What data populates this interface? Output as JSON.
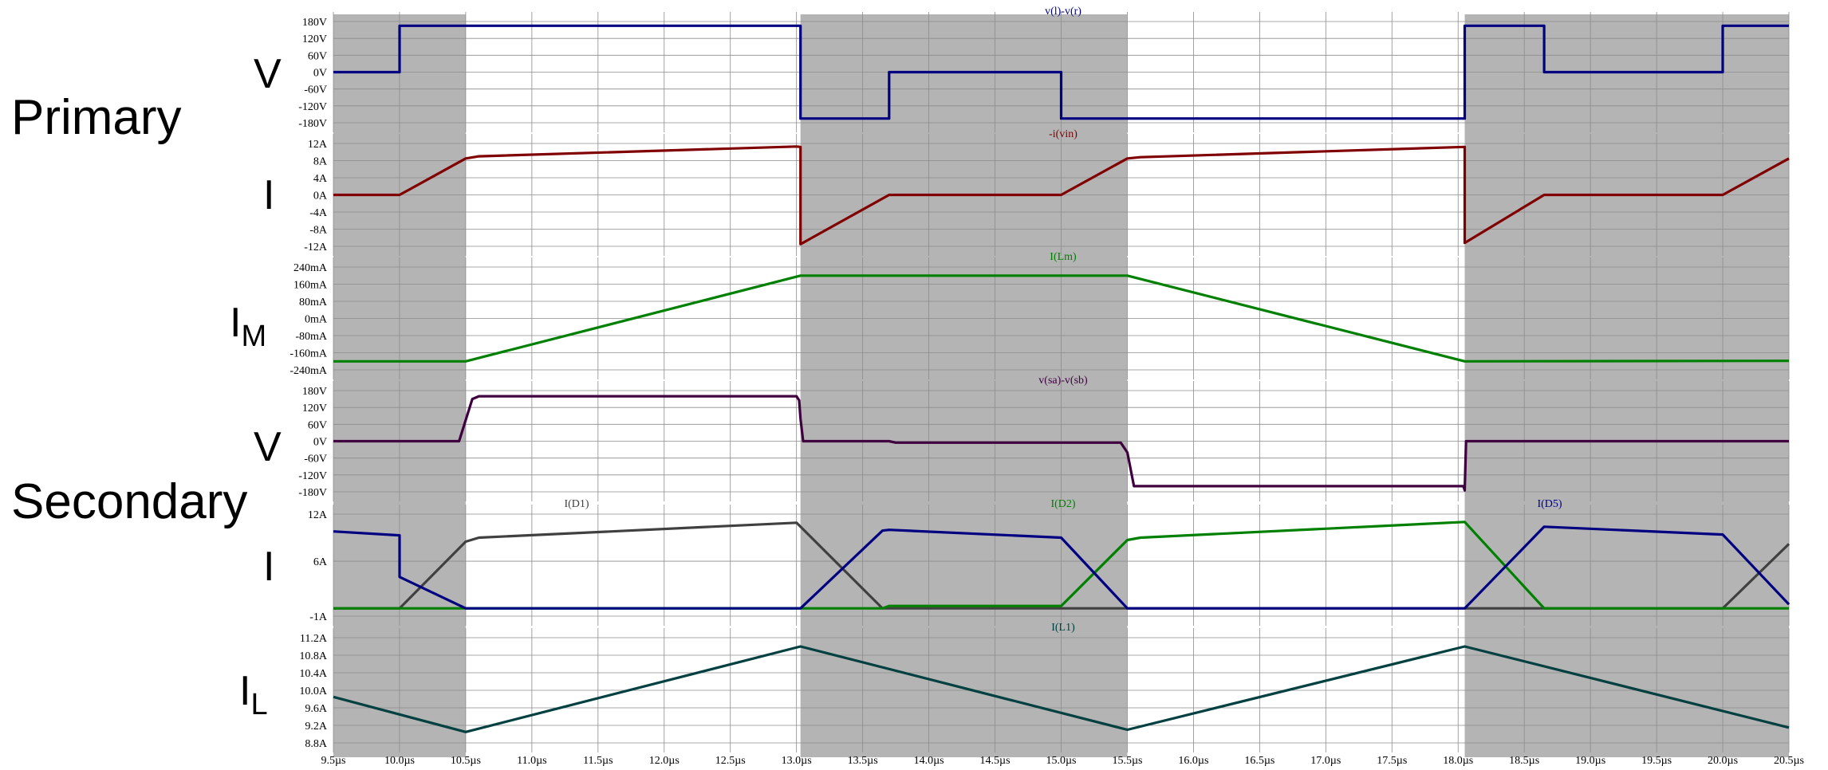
{
  "chart_data": {
    "type": "line",
    "x_axis": {
      "unit": "µs",
      "range": [
        9.5,
        20.5
      ],
      "tick_values": [
        9.5,
        10.0,
        10.5,
        11.0,
        11.5,
        12.0,
        12.5,
        13.0,
        13.5,
        14.0,
        14.5,
        15.0,
        15.5,
        16.0,
        16.5,
        17.0,
        17.5,
        18.0,
        18.5,
        19.0,
        19.5,
        20.0,
        20.5
      ],
      "tick_labels": [
        "9.5µs",
        "10.0µs",
        "10.5µs",
        "11.0µs",
        "11.5µs",
        "12.0µs",
        "12.5µs",
        "13.0µs",
        "13.5µs",
        "14.0µs",
        "14.5µs",
        "15.0µs",
        "15.5µs",
        "16.0µs",
        "16.5µs",
        "17.0µs",
        "17.5µs",
        "18.0µs",
        "18.5µs",
        "19.0µs",
        "19.5µs",
        "20.0µs",
        "20.5µs"
      ]
    },
    "grid": true,
    "shaded_intervals": [
      [
        9.5,
        10.5
      ],
      [
        13.03,
        15.5
      ],
      [
        18.05,
        20.5
      ]
    ],
    "group_labels": [
      "Primary",
      "Secondary"
    ],
    "panels": [
      {
        "axis_label": "V",
        "ylim": [
          -180,
          180
        ],
        "ticks": [
          180,
          120,
          60,
          0,
          -60,
          -120,
          -180
        ],
        "tick_labels": [
          "180V",
          "120V",
          "60V",
          "0V",
          "-60V",
          "-120V",
          "-180V"
        ],
        "series": [
          {
            "name": "v(l)-v(r)",
            "color": "#000080",
            "x": [
              9.5,
              10.0,
              10.0,
              13.03,
              13.03,
              13.7,
              13.7,
              15.0,
              15.0,
              18.05,
              18.05,
              18.65,
              18.65,
              20.0,
              20.0,
              20.5
            ],
            "y": [
              0,
              0,
              165,
              165,
              -165,
              -165,
              0,
              0,
              -165,
              -165,
              165,
              165,
              0,
              0,
              165,
              165
            ]
          }
        ]
      },
      {
        "axis_label": "I",
        "ylim": [
          -12,
          12
        ],
        "ticks": [
          12,
          8,
          4,
          0,
          -4,
          -8,
          -12
        ],
        "tick_labels": [
          "12A",
          "8A",
          "4A",
          "0A",
          "-4A",
          "-8A",
          "-12A"
        ],
        "series": [
          {
            "name": "-i(vin)",
            "color": "#800000",
            "x": [
              9.5,
              10.0,
              10.5,
              10.6,
              13.0,
              13.03,
              13.03,
              13.7,
              15.0,
              15.5,
              15.6,
              18.05,
              18.05,
              18.65,
              20.0,
              20.5
            ],
            "y": [
              0,
              0,
              8.5,
              9.0,
              11.3,
              11.2,
              -11.5,
              0,
              0,
              8.5,
              8.8,
              11.2,
              -11.2,
              0,
              0,
              8.5
            ]
          }
        ]
      },
      {
        "axis_label": "I",
        "axis_label_sub": "M",
        "ylim": [
          -240,
          240
        ],
        "ticks": [
          240,
          160,
          80,
          0,
          -80,
          -160,
          -240
        ],
        "tick_labels": [
          "240mA",
          "160mA",
          "80mA",
          "0mA",
          "-80mA",
          "-160mA",
          "-240mA"
        ],
        "series": [
          {
            "name": "I(Lm)",
            "color": "#008000",
            "x": [
              9.5,
              10.5,
              13.03,
              15.5,
              18.05,
              20.5
            ],
            "y": [
              -200,
              -200,
              200,
              200,
              -200,
              -198
            ]
          }
        ]
      },
      {
        "axis_label": "V",
        "ylim": [
          -180,
          180
        ],
        "ticks": [
          180,
          120,
          60,
          0,
          -60,
          -120,
          -180
        ],
        "tick_labels": [
          "180V",
          "120V",
          "60V",
          "0V",
          "-60V",
          "-120V",
          "-180V"
        ],
        "series": [
          {
            "name": "v(sa)-v(sb)",
            "color": "#400040",
            "x": [
              9.5,
              10.45,
              10.55,
              10.6,
              13.0,
              13.02,
              13.03,
              13.05,
              13.7,
              13.75,
              15.45,
              15.5,
              15.55,
              18.04,
              18.05,
              18.06,
              18.7,
              20.5
            ],
            "y": [
              0,
              0,
              150,
              160,
              160,
              145,
              80,
              0,
              0,
              -5,
              -5,
              -40,
              -160,
              -160,
              -175,
              0,
              0,
              0
            ]
          }
        ]
      },
      {
        "axis_label": "I",
        "ylim": [
          -1,
          12
        ],
        "ticks": [
          12,
          6,
          -1
        ],
        "tick_labels": [
          "12A",
          "6A",
          "-1A"
        ],
        "series": [
          {
            "name": "I(D1)",
            "color": "#404040",
            "x": [
              9.5,
              10.0,
              10.5,
              10.6,
              13.0,
              13.65,
              18.05,
              18.65,
              20.0,
              20.5
            ],
            "y": [
              0,
              0,
              8.5,
              9.0,
              10.9,
              0,
              0,
              0,
              0,
              8.2
            ]
          },
          {
            "name": "I(D2)",
            "color": "#008000",
            "x": [
              9.5,
              13.65,
              13.7,
              15.0,
              15.5,
              15.6,
              18.05,
              18.65,
              20.5
            ],
            "y": [
              0,
              0,
              0.3,
              0.3,
              8.7,
              9.0,
              11.0,
              0,
              0
            ]
          },
          {
            "name": "I(D5)",
            "color": "#000080",
            "x": [
              9.5,
              10.0,
              10.0,
              10.5,
              13.03,
              13.65,
              13.7,
              15.0,
              15.5,
              18.05,
              18.65,
              20.0,
              20.5
            ],
            "y": [
              9.8,
              9.3,
              4.0,
              0,
              0,
              9.9,
              10.0,
              9.0,
              0,
              0,
              10.4,
              9.4,
              0.5
            ]
          }
        ]
      },
      {
        "axis_label": "I",
        "axis_label_sub": "L",
        "ylim": [
          8.8,
          11.2
        ],
        "ticks": [
          11.2,
          10.8,
          10.4,
          10.0,
          9.6,
          9.2,
          8.8
        ],
        "tick_labels": [
          "11.2A",
          "10.8A",
          "10.4A",
          "10.0A",
          "9.6A",
          "9.2A",
          "8.8A"
        ],
        "series": [
          {
            "name": "I(L1)",
            "color": "#004040",
            "x": [
              9.5,
              10.5,
              13.03,
              15.5,
              18.05,
              20.5
            ],
            "y": [
              9.85,
              9.05,
              11.0,
              9.1,
              11.0,
              9.15
            ]
          }
        ]
      }
    ]
  }
}
